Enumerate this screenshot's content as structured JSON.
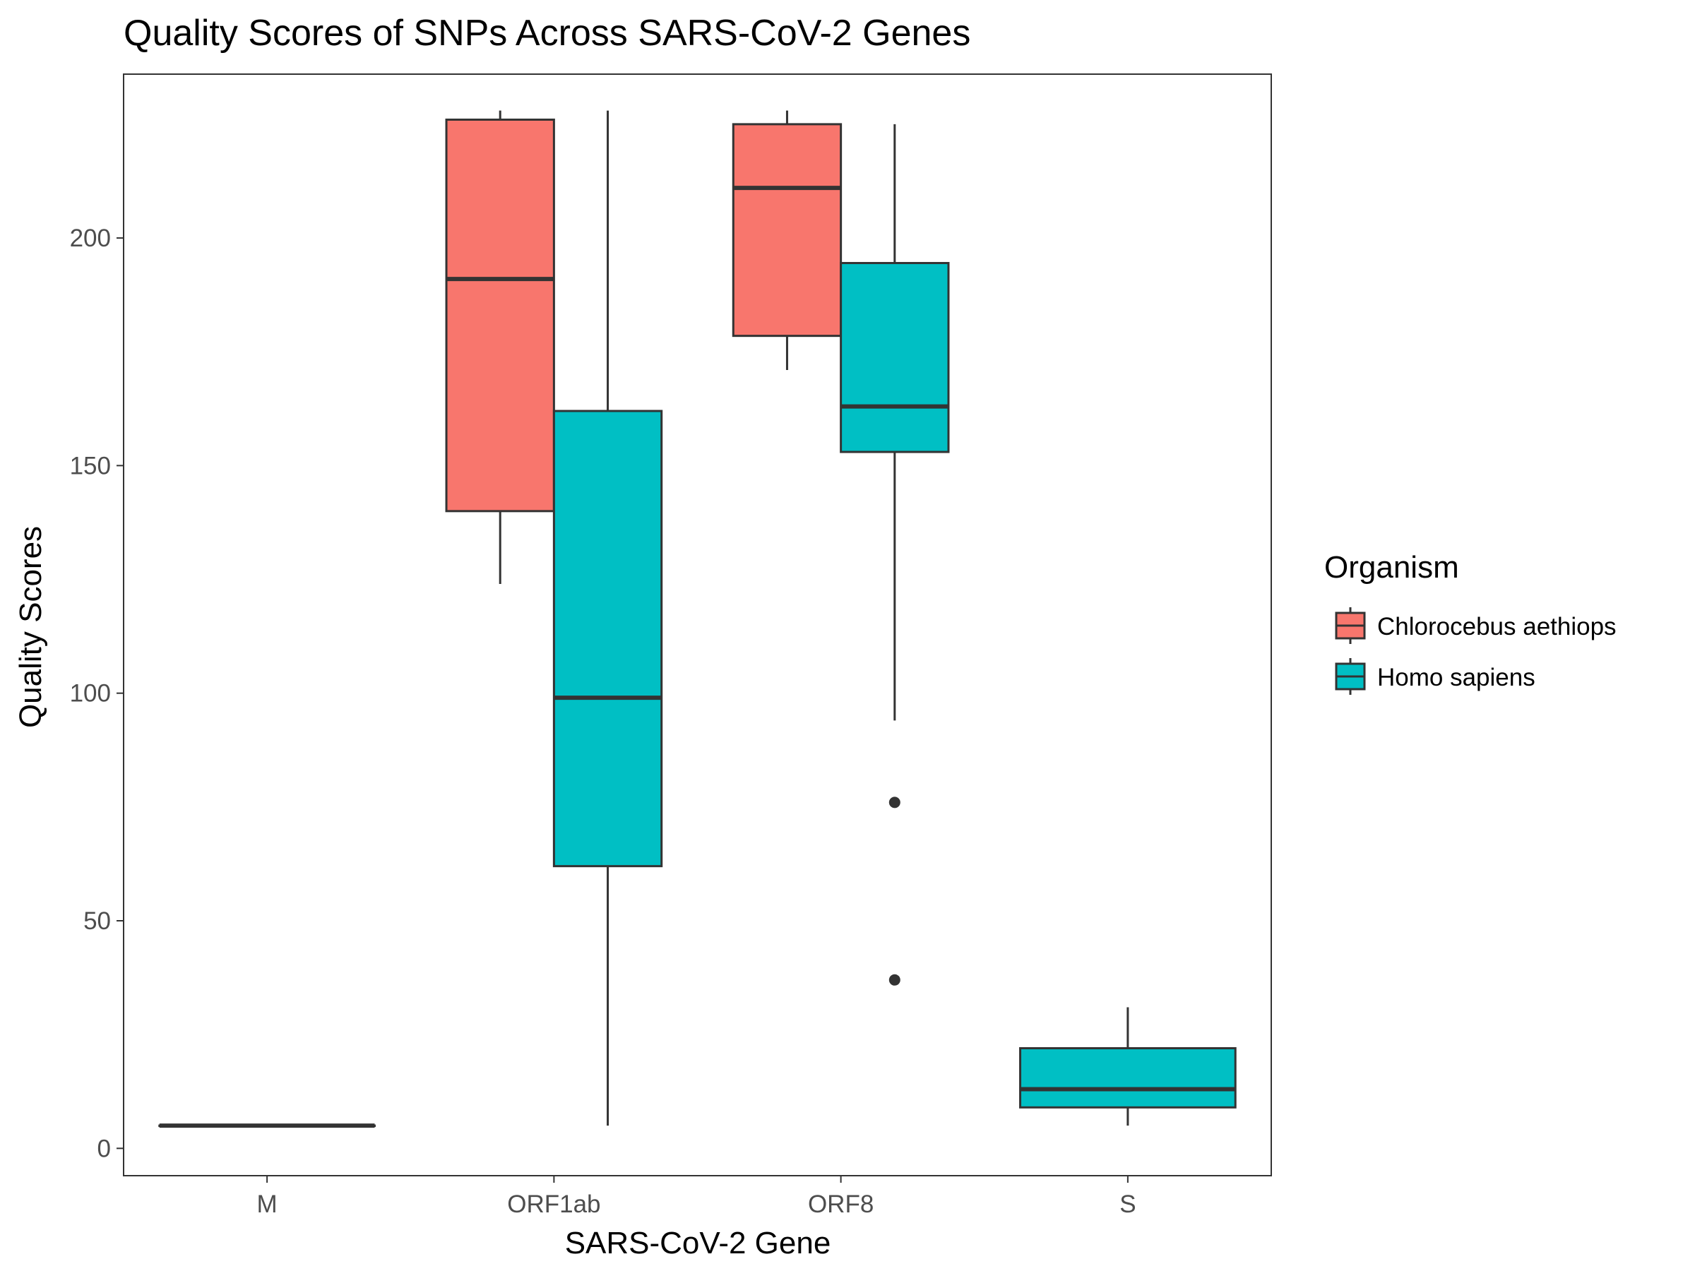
{
  "chart_data": {
    "type": "boxplot",
    "title": "Quality Scores of SNPs Across SARS-CoV-2 Genes",
    "xlabel": "SARS-CoV-2 Gene",
    "ylabel": "Quality Scores",
    "ylim": [
      -6,
      236
    ],
    "yticks": [
      0,
      50,
      100,
      150,
      200
    ],
    "categories": [
      "M",
      "ORF1ab",
      "ORF8",
      "S"
    ],
    "grid": false,
    "legend": {
      "title": "Organism",
      "placement": "right",
      "entries": [
        {
          "name": "Chlorocebus aethiops",
          "color": "#F8766D"
        },
        {
          "name": "Homo sapiens",
          "color": "#00BFC4"
        }
      ]
    },
    "colors": {
      "Chlorocebus aethiops": "#F8766D",
      "Homo sapiens": "#00BFC4",
      "outline": "#333333"
    },
    "series": [
      {
        "name": "Chlorocebus aethiops",
        "boxes": [
          {
            "category": "ORF1ab",
            "min": 124,
            "q1": 140,
            "median": 191,
            "q3": 226,
            "max": 228,
            "outliers": []
          },
          {
            "category": "ORF8",
            "min": 171,
            "q1": 178.5,
            "median": 211,
            "q3": 225,
            "max": 228,
            "outliers": []
          }
        ]
      },
      {
        "name": "Homo sapiens",
        "boxes": [
          {
            "category": "M",
            "min": 5,
            "q1": 5,
            "median": 5,
            "q3": 5,
            "max": 5,
            "outliers": [],
            "full_width": true
          },
          {
            "category": "ORF1ab",
            "min": 5,
            "q1": 62,
            "median": 99,
            "q3": 162,
            "max": 228,
            "outliers": []
          },
          {
            "category": "ORF8",
            "min": 94,
            "q1": 153,
            "median": 163,
            "q3": 194.5,
            "max": 225,
            "outliers": [
              76,
              37
            ]
          },
          {
            "category": "S",
            "min": 5,
            "q1": 9,
            "median": 13,
            "q3": 22,
            "max": 31,
            "outliers": [],
            "full_width": true
          }
        ]
      }
    ]
  }
}
